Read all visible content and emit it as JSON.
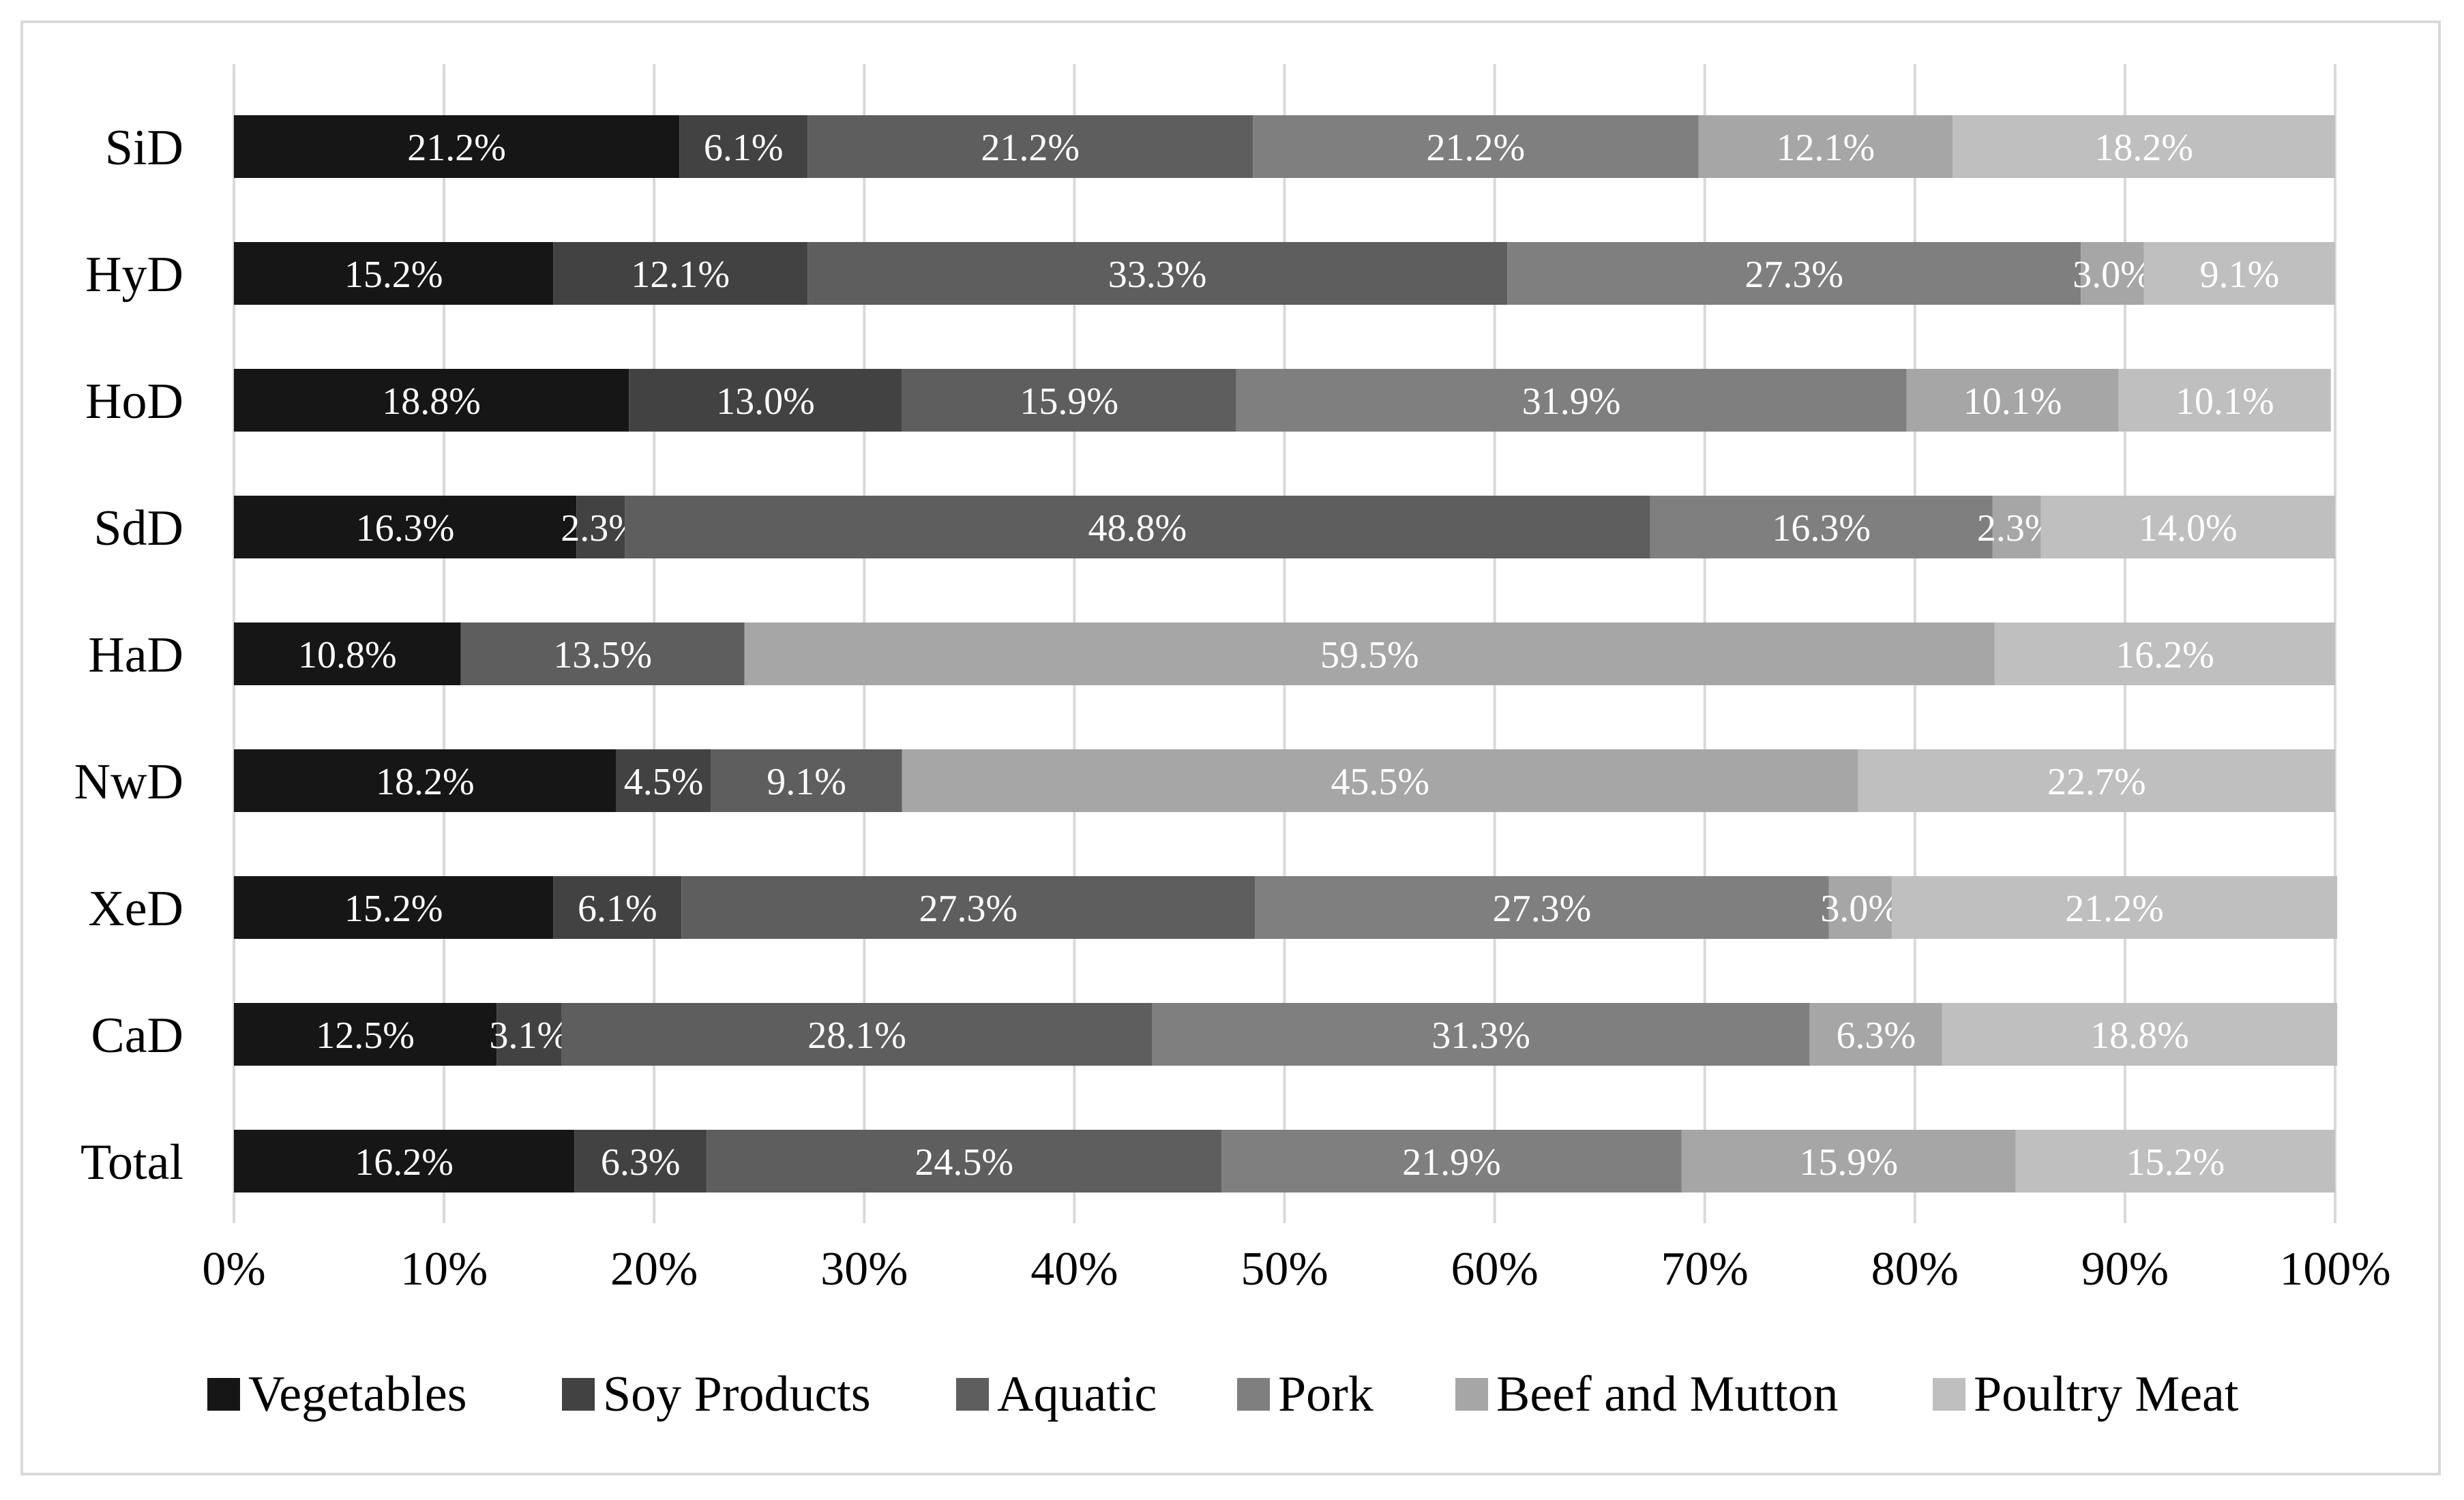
{
  "chart_data": {
    "type": "bar",
    "orientation": "horizontal",
    "stacked": "percent",
    "categories": [
      "SiD",
      "HyD",
      "HoD",
      "SdD",
      "HaD",
      "NwD",
      "XeD",
      "CaD",
      "Total"
    ],
    "series": [
      {
        "name": "Vegetables",
        "color": "#161616",
        "values": [
          21.2,
          15.2,
          18.8,
          16.3,
          10.8,
          18.2,
          15.2,
          12.5,
          16.2
        ],
        "labels": [
          "21.2%",
          "15.2%",
          "18.8%",
          "16.3%",
          "10.8%",
          "18.2%",
          "15.2%",
          "12.5%",
          "16.2%"
        ]
      },
      {
        "name": "Soy Products",
        "color": "#424242",
        "values": [
          6.1,
          12.1,
          13.0,
          2.3,
          0,
          4.5,
          6.1,
          3.1,
          6.3
        ],
        "labels": [
          "6.1%",
          "12.1%",
          "13.0%",
          "2.3%",
          "",
          "4.5%",
          "6.1%",
          "3.1%",
          "6.3%"
        ]
      },
      {
        "name": "Aquatic",
        "color": "#5e5e5e",
        "values": [
          21.2,
          33.3,
          15.9,
          48.8,
          13.5,
          9.1,
          27.3,
          28.1,
          24.5
        ],
        "labels": [
          "21.2%",
          "33.3%",
          "15.9%",
          "48.8%",
          "13.5%",
          "9.1%",
          "27.3%",
          "28.1%",
          "24.5%"
        ]
      },
      {
        "name": "Pork",
        "color": "#7f7f7f",
        "values": [
          21.2,
          27.3,
          31.9,
          16.3,
          0,
          0,
          27.3,
          31.3,
          21.9
        ],
        "labels": [
          "21.2%",
          "27.3%",
          "31.9%",
          "16.3%",
          "",
          "",
          "27.3%",
          "31.3%",
          "21.9%"
        ]
      },
      {
        "name": "Beef and Mutton",
        "color": "#a6a6a6",
        "values": [
          12.1,
          3.0,
          10.1,
          2.3,
          59.5,
          45.5,
          3.0,
          6.3,
          15.9
        ],
        "labels": [
          "12.1%",
          "3.0%",
          "10.1%",
          "2.3%",
          "59.5%",
          "45.5%",
          "3.0%",
          "6.3%",
          "15.9%"
        ]
      },
      {
        "name": "Poultry Meat",
        "color": "#bfbfbf",
        "values": [
          18.2,
          9.1,
          10.1,
          14.0,
          16.2,
          22.7,
          21.2,
          18.8,
          15.2
        ],
        "labels": [
          "18.2%",
          "9.1%",
          "10.1%",
          "14.0%",
          "16.2%",
          "22.7%",
          "21.2%",
          "18.8%",
          "15.2%"
        ]
      }
    ],
    "x_ticks": [
      "0%",
      "10%",
      "20%",
      "30%",
      "40%",
      "50%",
      "60%",
      "70%",
      "80%",
      "90%",
      "100%"
    ],
    "xlim": [
      0,
      100
    ],
    "grid": "vertical",
    "legend": "bottom",
    "title": "",
    "xlabel": "",
    "ylabel": ""
  }
}
